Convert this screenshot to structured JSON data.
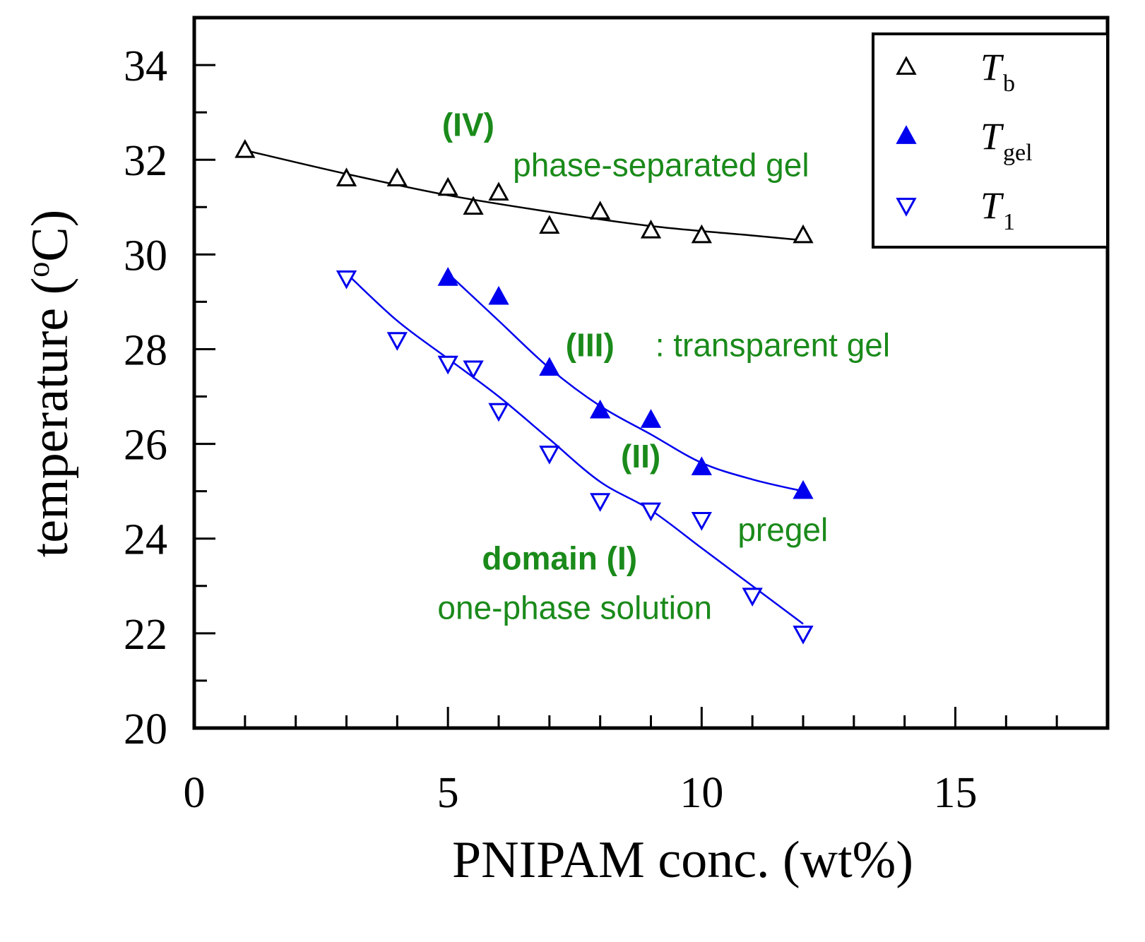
{
  "chart_data": {
    "type": "scatter",
    "xlabel": "PNIPAM conc.  (wt%)",
    "ylabel_main": "temperature (",
    "ylabel_sup": "o",
    "ylabel_end": "C)",
    "xlim": [
      0,
      18
    ],
    "ylim": [
      20,
      35
    ],
    "x_ticks": [
      0,
      5,
      10,
      15
    ],
    "y_ticks": [
      20,
      22,
      24,
      26,
      28,
      30,
      32,
      34
    ],
    "x_minor_step": 1,
    "grid": false,
    "legend_position": "top-right",
    "series": [
      {
        "name": "T",
        "sub": "b",
        "marker": "triangle-up-open",
        "color": "#000000",
        "x": [
          1,
          3,
          4,
          5,
          5.5,
          6,
          7,
          8,
          9,
          10,
          12
        ],
        "y": [
          32.2,
          31.6,
          31.6,
          31.4,
          31.0,
          31.3,
          30.6,
          30.9,
          30.5,
          30.4,
          30.4
        ],
        "fit": [
          [
            1,
            32.2
          ],
          [
            3,
            31.7
          ],
          [
            5,
            31.25
          ],
          [
            7,
            30.9
          ],
          [
            9,
            30.6
          ],
          [
            11,
            30.4
          ],
          [
            12,
            30.3
          ]
        ]
      },
      {
        "name": "T",
        "sub": "gel",
        "marker": "triangle-up-filled",
        "color": "#0000ee",
        "x": [
          5,
          6,
          7,
          8,
          9,
          10,
          12
        ],
        "y": [
          29.5,
          29.1,
          27.6,
          26.7,
          26.5,
          25.5,
          25.0
        ],
        "fit": [
          [
            5,
            29.6
          ],
          [
            6,
            28.6
          ],
          [
            7,
            27.6
          ],
          [
            8,
            26.8
          ],
          [
            9,
            26.2
          ],
          [
            10,
            25.6
          ],
          [
            11,
            25.25
          ],
          [
            12,
            25.0
          ]
        ]
      },
      {
        "name": "T",
        "sub": "1",
        "marker": "triangle-down-open",
        "color": "#0000ee",
        "x": [
          3,
          4,
          5,
          5.5,
          6,
          7,
          8,
          9,
          10,
          11,
          12
        ],
        "y": [
          29.5,
          28.2,
          27.7,
          27.6,
          26.7,
          25.8,
          24.8,
          24.6,
          24.4,
          22.8,
          22.0
        ],
        "fit": [
          [
            3,
            29.6
          ],
          [
            4,
            28.6
          ],
          [
            5,
            27.8
          ],
          [
            6,
            27.0
          ],
          [
            7,
            26.1
          ],
          [
            8,
            25.2
          ],
          [
            9,
            24.6
          ],
          [
            10,
            23.8
          ],
          [
            11,
            23.0
          ],
          [
            12,
            22.2
          ]
        ]
      }
    ],
    "annotations": [
      {
        "text": "(IV)",
        "x": 5.4,
        "y": 32.5,
        "bold": true
      },
      {
        "text": "phase-separated gel",
        "x": 9.2,
        "y": 31.65,
        "bold": false
      },
      {
        "text": "(III)",
        "x": 7.8,
        "y": 27.85,
        "bold": true
      },
      {
        "text": ": transparent gel",
        "x": 11.4,
        "y": 27.85,
        "bold": false
      },
      {
        "text": "(II)",
        "x": 8.8,
        "y": 25.5,
        "bold": true
      },
      {
        "text": "pregel",
        "x": 11.6,
        "y": 23.95,
        "bold": false
      },
      {
        "text": "domain (I)",
        "x": 7.2,
        "y": 23.35,
        "bold": true
      },
      {
        "text": "one-phase solution",
        "x": 7.5,
        "y": 22.3,
        "bold": false
      }
    ]
  }
}
